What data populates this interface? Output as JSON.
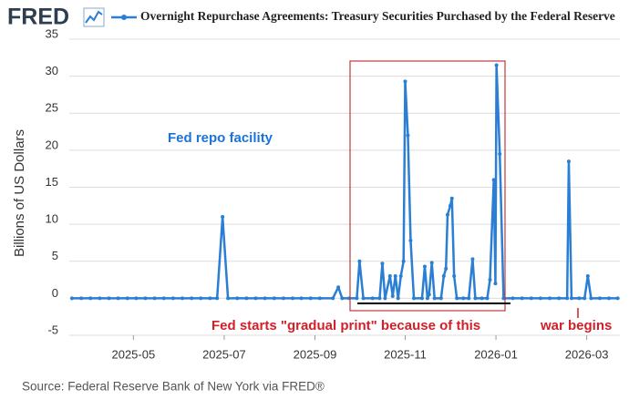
{
  "logo": "FRED",
  "chart_data": {
    "type": "line",
    "y_axis_label": "Billions of US Dollars",
    "source": "Source: Federal Reserve Bank of New York via FRED®",
    "annotations": [
      {
        "text": "Fed repo facility",
        "color": "#1a73d9"
      },
      {
        "text": "Fed starts \"gradual print\" because of this",
        "color": "#d0202a"
      },
      {
        "text": "war begins",
        "color": "#d0202a"
      }
    ],
    "x": [
      2025.22,
      2025.237,
      2025.254,
      2025.271,
      2025.288,
      2025.305,
      2025.322,
      2025.338,
      2025.355,
      2025.372,
      2025.389,
      2025.406,
      2025.423,
      2025.44,
      2025.457,
      2025.474,
      2025.487,
      2025.497,
      2025.507,
      2025.524,
      2025.541,
      2025.558,
      2025.575,
      2025.592,
      2025.609,
      2025.626,
      2025.642,
      2025.659,
      2025.676,
      2025.7,
      2025.71,
      2025.717,
      2025.73,
      2025.744,
      2025.749,
      2025.756,
      2025.773,
      2025.786,
      2025.791,
      2025.796,
      2025.805,
      2025.81,
      2025.815,
      2025.82,
      2025.825,
      2025.83,
      2025.833,
      2025.838,
      2025.843,
      2025.849,
      2025.864,
      2025.869,
      2025.874,
      2025.877,
      2025.882,
      2025.887,
      2025.899,
      2025.904,
      2025.908,
      2025.911,
      2025.916,
      2025.919,
      2025.923,
      2025.928,
      2025.94,
      2025.95,
      2025.957,
      2025.962,
      2025.974,
      2025.984,
      2025.989,
      2025.996,
      2025.999,
      2026.001,
      2026.007,
      2026.014,
      2026.031,
      2026.048,
      2026.065,
      2026.082,
      2026.099,
      2026.116,
      2026.131,
      2026.134,
      2026.139,
      2026.153,
      2026.163,
      2026.169,
      2026.175,
      2026.191,
      2026.208,
      2026.224
    ],
    "series": [
      {
        "name": "Overnight Repurchase Agreements: Treasury Securities Purchased by the Federal Reserve",
        "color": "#2a7fd4",
        "values": [
          0,
          0,
          0,
          0,
          0,
          0,
          0,
          0,
          0,
          0,
          0,
          0,
          0,
          0,
          0,
          0,
          0,
          11,
          0,
          0,
          0,
          0,
          0,
          0,
          0,
          0,
          0,
          0,
          0,
          0,
          1.5,
          0,
          0,
          0,
          5,
          0,
          0,
          0,
          4.7,
          0,
          3,
          0.3,
          3,
          0,
          3,
          5,
          29.3,
          22,
          7.8,
          0,
          0,
          4.3,
          0,
          0.5,
          4.8,
          0,
          0,
          3,
          4,
          11.3,
          12.5,
          13.5,
          3,
          0,
          0,
          0,
          5.3,
          0,
          0,
          0,
          2.5,
          16,
          2,
          31.5,
          19.5,
          0,
          0,
          0,
          0,
          0,
          0,
          0,
          0,
          18.5,
          0,
          0,
          0,
          3,
          0,
          0,
          0,
          0
        ]
      }
    ],
    "xlim": [
      2025.215,
      2026.228
    ],
    "xticks": [
      {
        "value": 2025.333,
        "label": "2025-05"
      },
      {
        "value": 2025.5,
        "label": "2025-07"
      },
      {
        "value": 2025.667,
        "label": "2025-09"
      },
      {
        "value": 2025.833,
        "label": "2025-11"
      },
      {
        "value": 2026.0,
        "label": "2026-01"
      },
      {
        "value": 2026.167,
        "label": "2026-03"
      }
    ],
    "ylim": [
      -5,
      35
    ],
    "yticks": [
      -5,
      0,
      5,
      10,
      15,
      20,
      25,
      30,
      35
    ],
    "grid": true
  }
}
